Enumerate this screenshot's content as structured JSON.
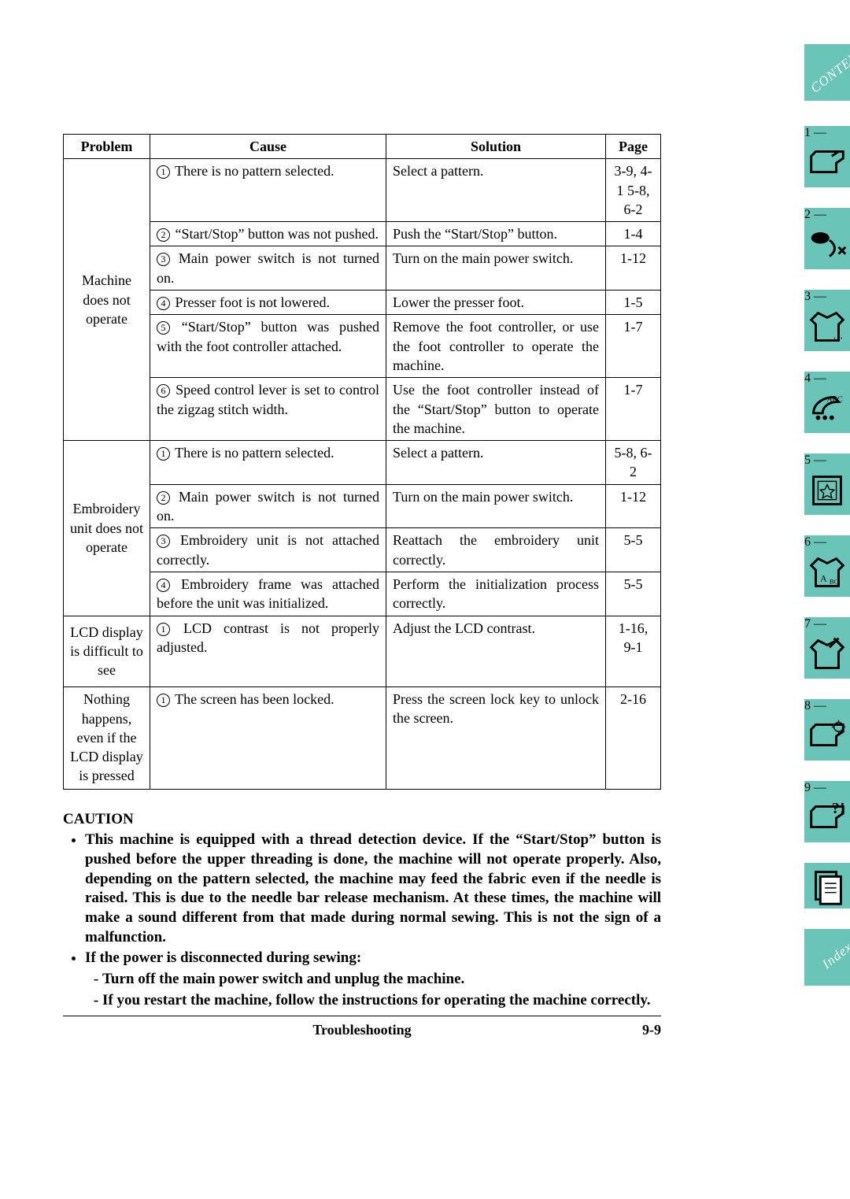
{
  "colors": {
    "tab_bg": "#6bc4b8",
    "tab_text": "#ffffff",
    "page_bg": "#ffffff",
    "rule": "#000000"
  },
  "typography": {
    "body_family": "Times New Roman",
    "body_size_pt": 13,
    "caution_weight": "bold"
  },
  "table": {
    "headers": {
      "problem": "Problem",
      "cause": "Cause",
      "solution": "Solution",
      "page": "Page"
    },
    "groups": [
      {
        "problem": "Machine does not operate",
        "rows": [
          {
            "n": "1",
            "cause": "There is no pattern selected.",
            "solution": "Select a pattern.",
            "page": "3-9, 4-1 5-8, 6-2"
          },
          {
            "n": "2",
            "cause": "“Start/Stop” button was not pushed.",
            "solution": "Push the “Start/Stop” button.",
            "page": "1-4"
          },
          {
            "n": "3",
            "cause": "Main power switch is not turned on.",
            "solution": "Turn on the main power switch.",
            "page": "1-12"
          },
          {
            "n": "4",
            "cause": "Presser foot is not lowered.",
            "solution": "Lower the presser foot.",
            "page": "1-5"
          },
          {
            "n": "5",
            "cause": "“Start/Stop” button was pushed with the foot controller attached.",
            "solution": "Remove the foot controller, or use the foot controller to operate the machine.",
            "page": "1-7"
          },
          {
            "n": "6",
            "cause": "Speed control lever is set to control the zigzag stitch width.",
            "solution": "Use the foot controller instead of the “Start/Stop” button to operate the machine.",
            "page": "1-7"
          }
        ]
      },
      {
        "problem": "Embroidery unit does not operate",
        "rows": [
          {
            "n": "1",
            "cause": "There is no pattern selected.",
            "solution": "Select a pattern.",
            "page": "5-8, 6-2"
          },
          {
            "n": "2",
            "cause": "Main power switch is not turned on.",
            "solution": "Turn on the main power switch.",
            "page": "1-12"
          },
          {
            "n": "3",
            "cause": "Embroidery unit is not attached correctly.",
            "solution": "Reattach the embroidery unit correctly.",
            "page": "5-5"
          },
          {
            "n": "4",
            "cause": "Embroidery frame was attached before the unit was initialized.",
            "solution": "Perform the initialization process correctly.",
            "page": "5-5"
          }
        ]
      },
      {
        "problem": "LCD display is difficult to see",
        "rows": [
          {
            "n": "1",
            "cause": "LCD contrast is not properly adjusted.",
            "solution": "Adjust the LCD contrast.",
            "page": "1-16, 9-1"
          }
        ],
        "min_height": 90
      },
      {
        "problem": "Nothing happens, even if the LCD display is pressed",
        "rows": [
          {
            "n": "1",
            "cause": "The screen has been locked.",
            "solution": "Press the screen lock key to unlock the screen.",
            "page": "2-16"
          }
        ],
        "min_height": 130
      }
    ]
  },
  "caution": {
    "title": "CAUTION",
    "items": [
      {
        "text": "This machine is equipped with a thread detection device. If the “Start/Stop” button is pushed before the upper threading is done, the machine will not operate properly. Also, depending on the pattern selected, the machine may feed the fabric even if the needle is raised. This is due to the needle bar release mechanism. At these times, the machine will make a sound different from that made during normal sewing. This is not the sign of a malfunction."
      },
      {
        "text": "If the power is disconnected during sewing:",
        "sub": [
          "Turn off the main power switch and unplug the machine.",
          "If you restart the machine, follow the instructions for operating the machine correctly."
        ]
      }
    ]
  },
  "footer": {
    "center": "Troubleshooting",
    "right": "9-9"
  },
  "tabs": {
    "top_special": "CONTENTS",
    "bottom_special": "Index",
    "items": [
      {
        "label": "1 —",
        "icon": "machine"
      },
      {
        "label": "2 —",
        "icon": "thread"
      },
      {
        "label": "3 —",
        "icon": "shirt"
      },
      {
        "label": "4 —",
        "icon": "abc-hoop"
      },
      {
        "label": "5 —",
        "icon": "star-frame"
      },
      {
        "label": "6 —",
        "icon": "shirt-abc"
      },
      {
        "label": "7 —",
        "icon": "shirt-needle"
      },
      {
        "label": "8 —",
        "icon": "machine-gear"
      },
      {
        "label": "9 —",
        "icon": "machine-question"
      },
      {
        "label": "",
        "icon": "pages"
      }
    ]
  }
}
